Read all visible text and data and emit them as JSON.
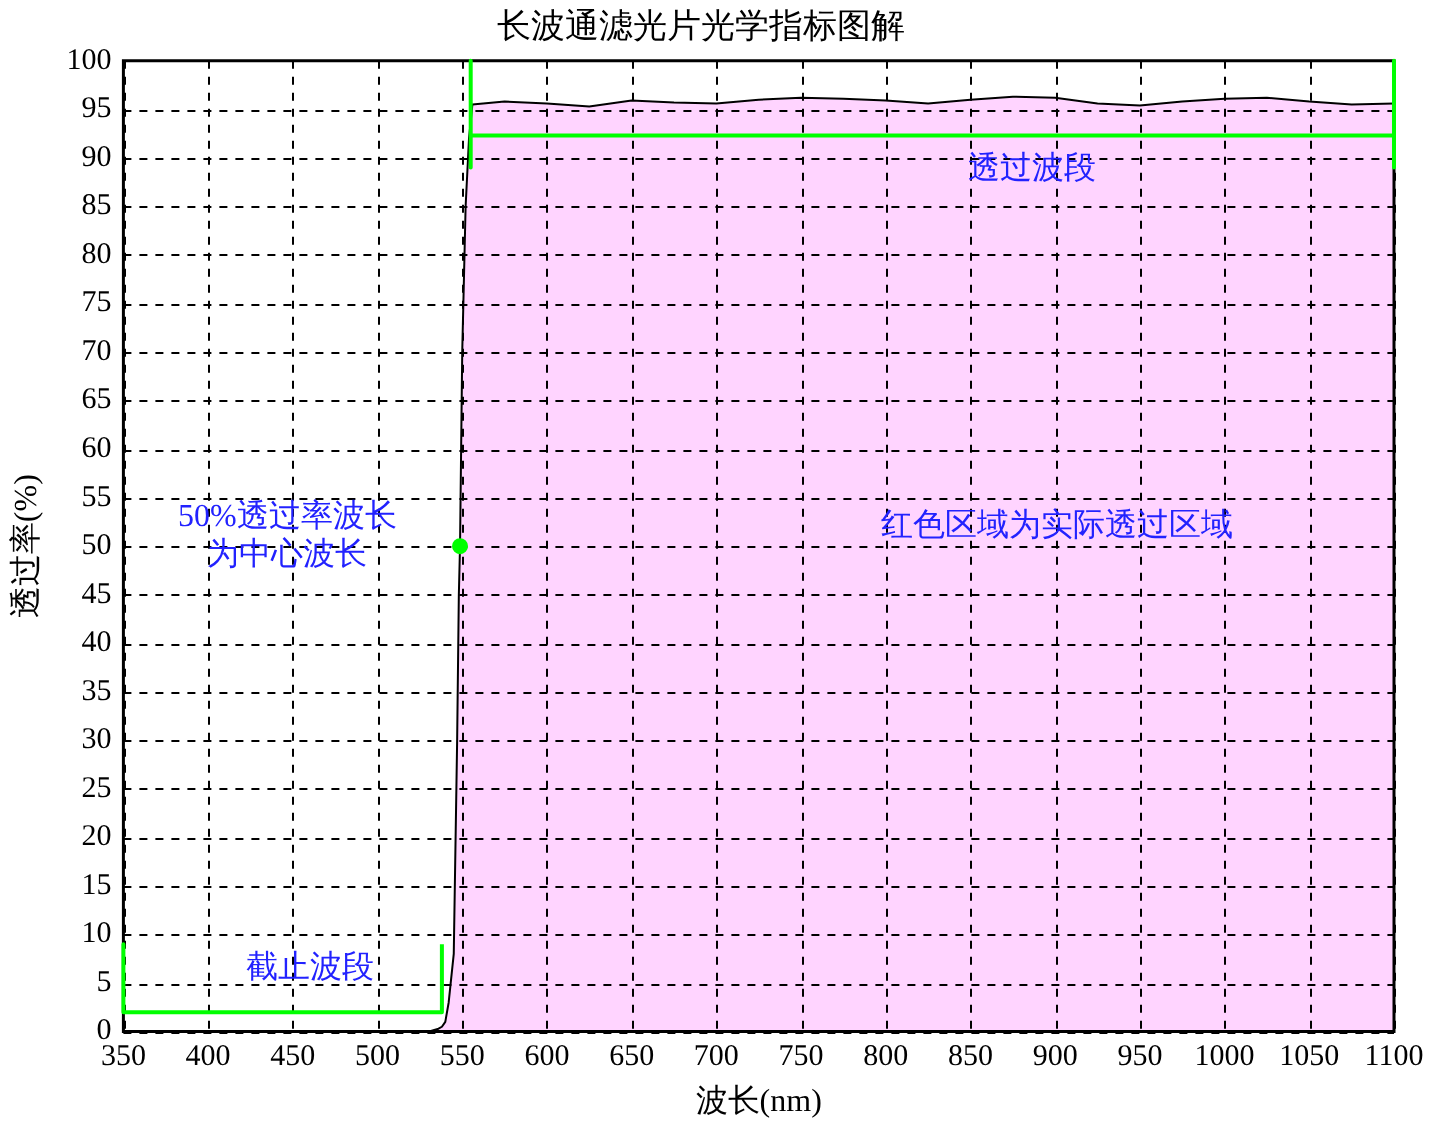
{
  "chart_data": {
    "type": "area",
    "title": "长波通滤光片光学指标图解",
    "xlabel": "波长(nm)",
    "ylabel": "透过率(%)",
    "xlim": [
      350,
      1100
    ],
    "xticks": [
      350,
      400,
      450,
      500,
      550,
      600,
      650,
      700,
      750,
      800,
      850,
      900,
      950,
      1000,
      1050,
      1100
    ],
    "ylim": [
      0,
      100
    ],
    "yticks": [
      0,
      5,
      10,
      15,
      20,
      25,
      30,
      35,
      40,
      45,
      50,
      55,
      60,
      65,
      70,
      75,
      80,
      85,
      90,
      95,
      100
    ],
    "grid": true,
    "legend": false,
    "series": [
      {
        "color": "#ffd4ff",
        "x": [
          350,
          400,
          450,
          500,
          530,
          536,
          538,
          540,
          542,
          545,
          547,
          548,
          548.7,
          550,
          552,
          554,
          556,
          575,
          600,
          625,
          650,
          675,
          700,
          725,
          750,
          775,
          800,
          825,
          850,
          875,
          900,
          925,
          950,
          975,
          1000,
          1025,
          1050,
          1075,
          1100
        ],
        "values": [
          0,
          0,
          0,
          0,
          0,
          0.3,
          0.5,
          1,
          3,
          8,
          30,
          45,
          50,
          70,
          85,
          92,
          95.5,
          95.8,
          95.6,
          95.3,
          95.9,
          95.7,
          95.6,
          96,
          96.2,
          96.1,
          95.9,
          95.6,
          96,
          96.3,
          96.2,
          95.6,
          95.4,
          95.8,
          96.1,
          96.2,
          95.8,
          95.5,
          95.6
        ]
      },
      {
        "type": "line",
        "color": "#00ff00",
        "x": [
          350,
          350,
          538,
          538
        ],
        "values": [
          9,
          2,
          2,
          9
        ]
      },
      {
        "type": "line",
        "color": "#00ff00",
        "x": [
          555,
          555,
          555,
          1100,
          1100,
          1100
        ],
        "values": [
          100,
          89,
          92.3,
          92.3,
          100,
          89
        ]
      },
      {
        "type": "scatter",
        "color": "#00ff00",
        "marker": "circle",
        "x": [
          548.7
        ],
        "values": [
          50
        ]
      }
    ],
    "annotations": [
      "透过波段",
      "截止波段",
      "50%透过率波长为中心波长",
      "红色区域为实际透过区域"
    ]
  }
}
